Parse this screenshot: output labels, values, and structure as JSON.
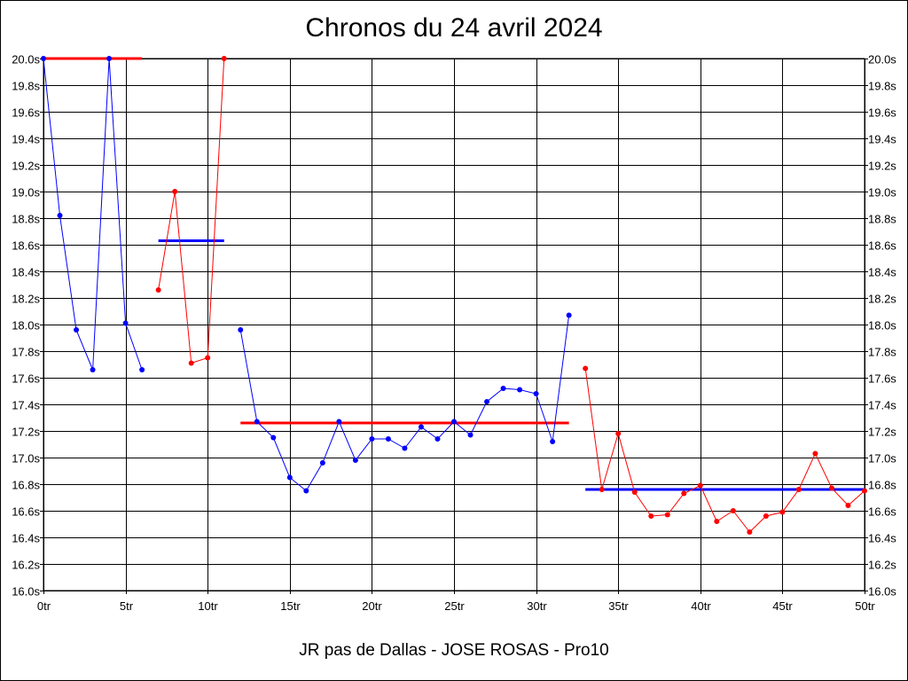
{
  "colors": {
    "blue": "#0000ff",
    "red": "#ff0000",
    "grid": "#000000"
  },
  "chart_data": {
    "type": "line",
    "title": "Chronos du 24 avril 2024",
    "subtitle": "JR pas de Dallas - JOSE ROSAS - Pro10",
    "xlim": [
      0,
      50
    ],
    "ylim": [
      16.0,
      20.0
    ],
    "x_ticks": [
      {
        "value": 0,
        "label": "0tr"
      },
      {
        "value": 5,
        "label": "5tr"
      },
      {
        "value": 10,
        "label": "10tr"
      },
      {
        "value": 15,
        "label": "15tr"
      },
      {
        "value": 20,
        "label": "20tr"
      },
      {
        "value": 25,
        "label": "25tr"
      },
      {
        "value": 30,
        "label": "30tr"
      },
      {
        "value": 35,
        "label": "35tr"
      },
      {
        "value": 40,
        "label": "40tr"
      },
      {
        "value": 45,
        "label": "45tr"
      },
      {
        "value": 50,
        "label": "50tr"
      }
    ],
    "y_ticks": [
      {
        "value": 20.0,
        "label": "20.0s"
      },
      {
        "value": 19.8,
        "label": "19.8s"
      },
      {
        "value": 19.6,
        "label": "19.6s"
      },
      {
        "value": 19.4,
        "label": "19.4s"
      },
      {
        "value": 19.2,
        "label": "19.2s"
      },
      {
        "value": 19.0,
        "label": "19.0s"
      },
      {
        "value": 18.8,
        "label": "18.8s"
      },
      {
        "value": 18.6,
        "label": "18.6s"
      },
      {
        "value": 18.4,
        "label": "18.4s"
      },
      {
        "value": 18.2,
        "label": "18.2s"
      },
      {
        "value": 18.0,
        "label": "18.0s"
      },
      {
        "value": 17.8,
        "label": "17.8s"
      },
      {
        "value": 17.6,
        "label": "17.6s"
      },
      {
        "value": 17.4,
        "label": "17.4s"
      },
      {
        "value": 17.2,
        "label": "17.2s"
      },
      {
        "value": 17.0,
        "label": "17.0s"
      },
      {
        "value": 16.8,
        "label": "16.8s"
      },
      {
        "value": 16.6,
        "label": "16.6s"
      },
      {
        "value": 16.4,
        "label": "16.4s"
      },
      {
        "value": 16.2,
        "label": "16.2s"
      },
      {
        "value": 16.0,
        "label": "16.0s"
      }
    ],
    "grid": true,
    "series": [
      {
        "color": "blue",
        "points": [
          [
            0,
            20.0
          ],
          [
            1,
            18.82
          ],
          [
            2,
            17.96
          ],
          [
            3,
            17.66
          ],
          [
            4,
            20.0
          ],
          [
            5,
            18.01
          ],
          [
            6,
            17.66
          ]
        ]
      },
      {
        "color": "red",
        "points": [
          [
            7,
            18.26
          ],
          [
            8,
            19.0
          ],
          [
            9,
            17.71
          ],
          [
            10,
            17.75
          ],
          [
            11,
            20.0
          ]
        ]
      },
      {
        "color": "blue",
        "points": [
          [
            12,
            17.96
          ],
          [
            13,
            17.27
          ],
          [
            14,
            17.15
          ],
          [
            15,
            16.85
          ],
          [
            16,
            16.75
          ],
          [
            17,
            16.96
          ],
          [
            18,
            17.27
          ],
          [
            19,
            16.98
          ],
          [
            20,
            17.14
          ],
          [
            21,
            17.14
          ],
          [
            22,
            17.07
          ],
          [
            23,
            17.23
          ],
          [
            24,
            17.14
          ],
          [
            25,
            17.27
          ],
          [
            26,
            17.17
          ],
          [
            27,
            17.42
          ],
          [
            28,
            17.52
          ],
          [
            29,
            17.51
          ],
          [
            30,
            17.48
          ],
          [
            31,
            17.12
          ],
          [
            32,
            18.07
          ]
        ]
      },
      {
        "color": "red",
        "points": [
          [
            33,
            17.67
          ],
          [
            34,
            16.76
          ],
          [
            35,
            17.18
          ],
          [
            36,
            16.74
          ],
          [
            37,
            16.56
          ],
          [
            38,
            16.57
          ],
          [
            39,
            16.73
          ],
          [
            40,
            16.79
          ],
          [
            41,
            16.52
          ],
          [
            42,
            16.6
          ],
          [
            43,
            16.44
          ],
          [
            44,
            16.56
          ],
          [
            45,
            16.59
          ],
          [
            46,
            16.76
          ],
          [
            47,
            17.03
          ],
          [
            48,
            16.77
          ],
          [
            49,
            16.64
          ],
          [
            50,
            16.75
          ]
        ]
      }
    ],
    "averages": [
      {
        "color": "red",
        "x_start": 0,
        "x_end": 6,
        "y": 20.0
      },
      {
        "color": "blue",
        "x_start": 7,
        "x_end": 11,
        "y": 18.63
      },
      {
        "color": "red",
        "x_start": 12,
        "x_end": 32,
        "y": 17.26
      },
      {
        "color": "blue",
        "x_start": 33,
        "x_end": 50,
        "y": 16.76
      }
    ]
  }
}
